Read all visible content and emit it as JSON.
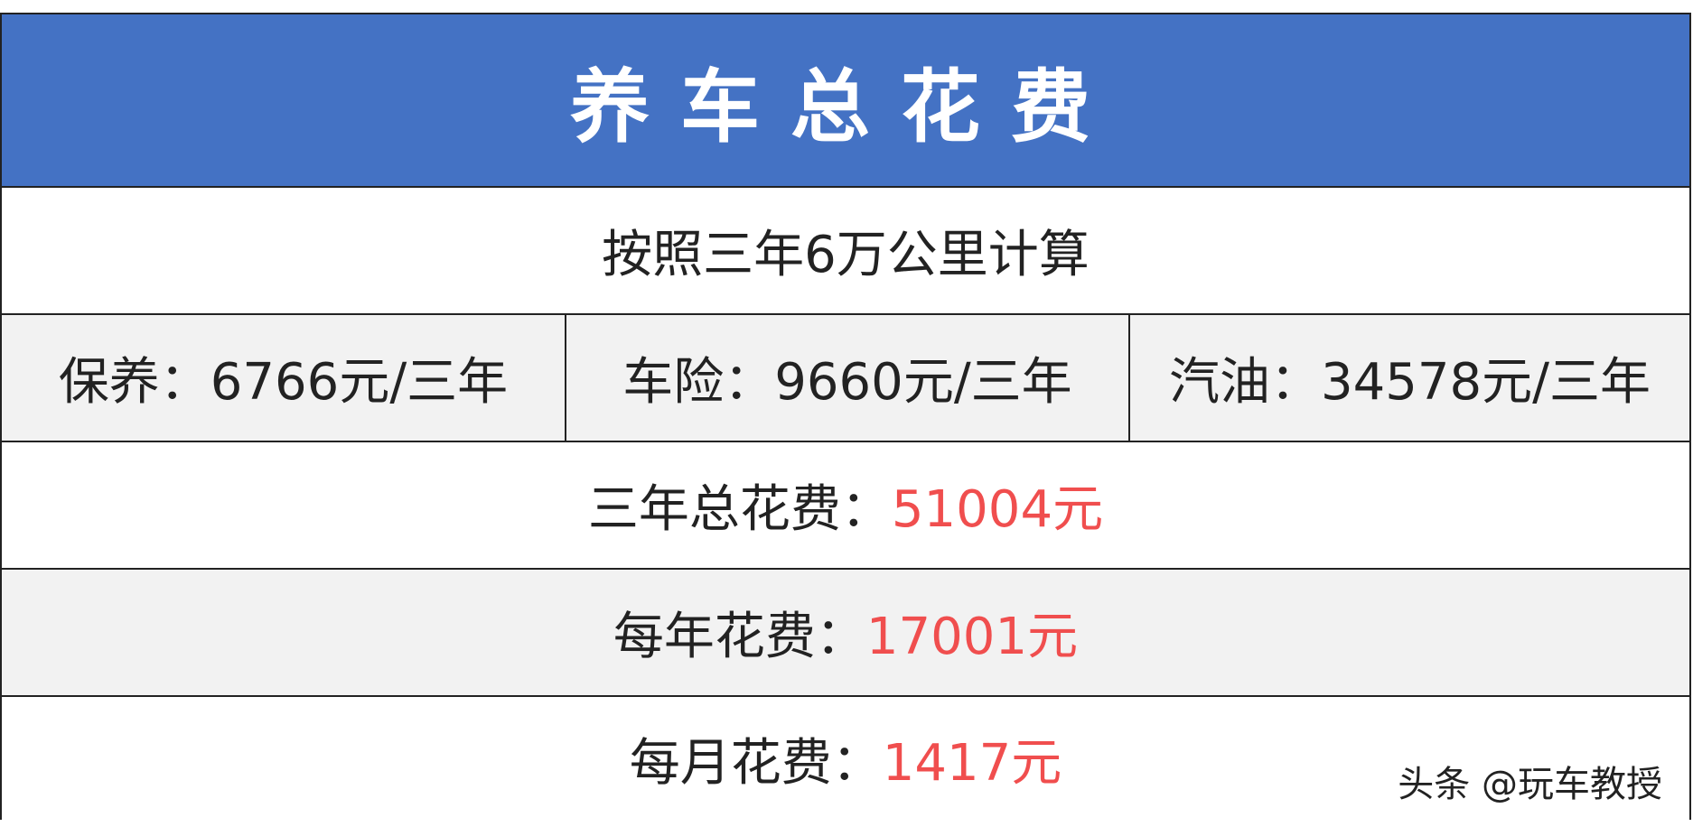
{
  "title": "养车总花费",
  "subtitle": "按照三年6万公里计算",
  "costs": [
    {
      "label": "保养：",
      "value": "6766元/三年"
    },
    {
      "label": "车险：",
      "value": "9660元/三年"
    },
    {
      "label": "汽油：",
      "value": "34578元/三年"
    }
  ],
  "totals": [
    {
      "label": "三年总花费：",
      "value": "51004元"
    },
    {
      "label": "每年花费：",
      "value": "17001元"
    },
    {
      "label": "每月花费：",
      "value": "1417元"
    }
  ],
  "watermark": "头条 @玩车教授",
  "colors": {
    "header": "#4472c4",
    "highlight": "#f04e4e",
    "stripe": "#f2f2f2"
  }
}
